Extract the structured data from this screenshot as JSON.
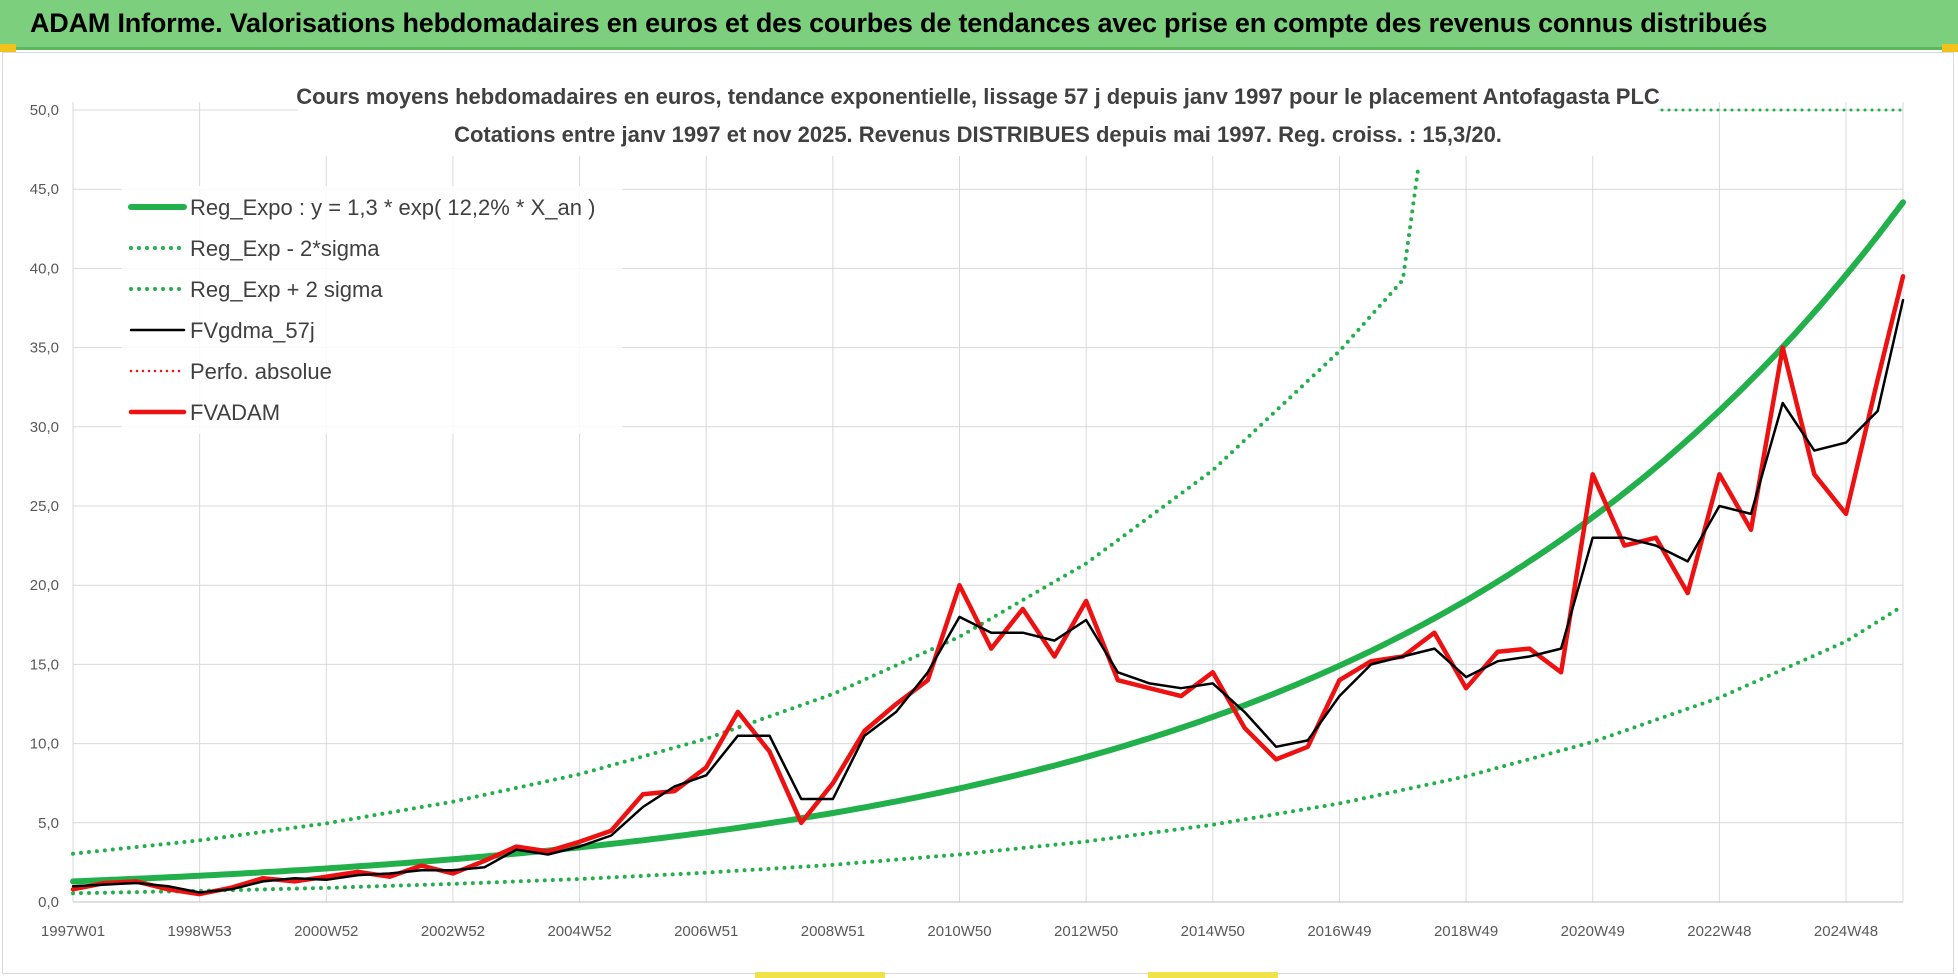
{
  "banner": {
    "title": "ADAM Informe. Valorisations hebdomadaires en euros et des courbes de tendances avec prise en compte des revenus connus distribués"
  },
  "colors": {
    "banner_bg": "#7ccf7c",
    "reg_green": "#22b04b",
    "fvadam_red": "#ee1111",
    "gdma_black": "#000000",
    "grid": "#d9d9d9",
    "text": "#404040"
  },
  "chart_data": {
    "type": "line",
    "title": "Cours moyens hebdomadaires en euros, tendance exponentielle, lissage 57 j depuis janv 1997  pour le placement Antofagasta PLC",
    "subtitle": "Cotations entre janv 1997 et nov 2025. Revenus DISTRIBUES depuis mai 1997.  Reg. croiss. : 15,3/20.",
    "xlabel": "",
    "ylabel": "",
    "ylim": [
      0,
      50
    ],
    "xlim": [
      1997.0,
      2025.9
    ],
    "grid": true,
    "legend_position": "top-left",
    "y_ticks": [
      "0,0",
      "5,0",
      "10,0",
      "15,0",
      "20,0",
      "25,0",
      "30,0",
      "35,0",
      "40,0",
      "45,0",
      "50,0"
    ],
    "x_ticks": [
      {
        "label": "1997W01",
        "year": 1997.0
      },
      {
        "label": "1998W53",
        "year": 1999.0
      },
      {
        "label": "2000W52",
        "year": 2001.0
      },
      {
        "label": "2002W52",
        "year": 2003.0
      },
      {
        "label": "2004W52",
        "year": 2005.0
      },
      {
        "label": "2006W51",
        "year": 2007.0
      },
      {
        "label": "2008W51",
        "year": 2009.0
      },
      {
        "label": "2010W50",
        "year": 2011.0
      },
      {
        "label": "2012W50",
        "year": 2013.0
      },
      {
        "label": "2014W50",
        "year": 2015.0
      },
      {
        "label": "2016W49",
        "year": 2017.0
      },
      {
        "label": "2018W49",
        "year": 2019.0
      },
      {
        "label": "2020W49",
        "year": 2021.0
      },
      {
        "label": "2022W48",
        "year": 2023.0
      },
      {
        "label": "2024W48",
        "year": 2025.0
      }
    ],
    "regression": {
      "a": 1.3,
      "rate": 0.122
    },
    "legend": [
      {
        "label": "Reg_Expo : y = 1,3 * exp( 12,2% *  X_an )",
        "style": "solid-green"
      },
      {
        "label": "Reg_Exp - 2*sigma",
        "style": "dotted-green"
      },
      {
        "label": "Reg_Exp + 2 sigma",
        "style": "dotted-green"
      },
      {
        "label": "FVgdma_57j",
        "style": "solid-black"
      },
      {
        "label": "Perfo. absolue",
        "style": "dotted-red"
      },
      {
        "label": "FVADAM",
        "style": "solid-red"
      }
    ],
    "series": [
      {
        "name": "Reg_Expo : y = 1,3 * exp( 12,2% *  X_an )",
        "x": [
          1997,
          1998,
          1999,
          2000,
          2001,
          2002,
          2003,
          2004,
          2005,
          2006,
          2007,
          2008,
          2009,
          2010,
          2011,
          2012,
          2013,
          2014,
          2015,
          2016,
          2017,
          2018,
          2019,
          2020,
          2021,
          2022,
          2023,
          2024,
          2025,
          2025.9
        ],
        "values": [
          1.3,
          1.47,
          1.66,
          1.88,
          2.12,
          2.39,
          2.7,
          3.05,
          3.45,
          3.89,
          4.4,
          4.97,
          5.61,
          6.34,
          7.16,
          8.09,
          9.13,
          10.31,
          11.65,
          13.16,
          14.86,
          16.78,
          18.95,
          21.4,
          24.17,
          27.3,
          30.83,
          34.82,
          39.33,
          44.7
        ]
      },
      {
        "name": "Reg_Exp - 2*sigma",
        "x": [
          1997,
          1999,
          2001,
          2003,
          2005,
          2007,
          2009,
          2011,
          2013,
          2015,
          2017,
          2019,
          2021,
          2023,
          2025,
          2025.9
        ],
        "values": [
          0.55,
          0.7,
          0.89,
          1.14,
          1.45,
          1.85,
          2.35,
          3.0,
          3.82,
          4.88,
          6.22,
          7.93,
          10.11,
          12.9,
          16.45,
          18.7
        ]
      },
      {
        "name": "Reg_Exp + 2 sigma",
        "x": [
          1997,
          1999,
          2001,
          2003,
          2005,
          2007,
          2009,
          2011,
          2013,
          2015,
          2017,
          2018,
          2018.25
        ],
        "values": [
          3.05,
          3.89,
          4.96,
          6.33,
          8.07,
          10.3,
          13.13,
          16.75,
          21.37,
          27.26,
          34.77,
          39.27,
          46.5
        ]
      },
      {
        "name": "FVgdma_57j",
        "x": [
          1997.0,
          1997.5,
          1998.0,
          1998.5,
          1999.0,
          1999.5,
          2000.0,
          2000.5,
          2001.0,
          2001.5,
          2002.0,
          2002.5,
          2003.0,
          2003.5,
          2004.0,
          2004.5,
          2005.0,
          2005.5,
          2006.0,
          2006.5,
          2007.0,
          2007.5,
          2008.0,
          2008.5,
          2009.0,
          2009.5,
          2010.0,
          2010.5,
          2011.0,
          2011.5,
          2012.0,
          2012.5,
          2013.0,
          2013.5,
          2014.0,
          2014.5,
          2015.0,
          2015.5,
          2016.0,
          2016.5,
          2017.0,
          2017.5,
          2018.0,
          2018.5,
          2019.0,
          2019.5,
          2020.0,
          2020.5,
          2021.0,
          2021.5,
          2022.0,
          2022.5,
          2023.0,
          2023.5,
          2024.0,
          2024.5,
          2025.0,
          2025.5,
          2025.9
        ],
        "values": [
          1.0,
          1.1,
          1.2,
          1.0,
          0.6,
          0.8,
          1.3,
          1.5,
          1.4,
          1.7,
          1.8,
          2.0,
          2.0,
          2.2,
          3.3,
          3.0,
          3.5,
          4.2,
          6.0,
          7.3,
          8.0,
          10.5,
          10.5,
          6.5,
          6.5,
          10.5,
          12.0,
          14.5,
          18.0,
          17.0,
          17.0,
          16.5,
          17.8,
          14.5,
          13.8,
          13.5,
          13.8,
          12.0,
          9.8,
          10.2,
          13.0,
          15.0,
          15.5,
          16.0,
          14.2,
          15.2,
          15.5,
          16.0,
          23.0,
          23.0,
          22.5,
          21.5,
          25.0,
          24.5,
          31.5,
          28.5,
          29.0,
          31.0,
          38.0
        ]
      },
      {
        "name": "Perfo. absolue",
        "x": [
          1997.0,
          1997.5,
          1998.0,
          1998.5,
          1999.0,
          1999.5,
          2000.0,
          2000.5,
          2001.0,
          2001.5,
          2002.0,
          2002.5,
          2003.0,
          2003.5,
          2004.0,
          2004.5,
          2005.0,
          2005.5,
          2006.0,
          2006.5,
          2007.0,
          2007.5,
          2008.0,
          2008.5,
          2009.0,
          2009.5,
          2010.0,
          2010.5,
          2011.0,
          2011.5,
          2012.0,
          2012.5,
          2013.0,
          2013.5,
          2014.0,
          2014.5,
          2015.0,
          2015.5,
          2016.0,
          2016.5,
          2017.0,
          2017.5,
          2018.0,
          2018.5,
          2019.0,
          2019.5,
          2020.0,
          2020.5,
          2021.0,
          2021.5,
          2022.0,
          2022.5,
          2023.0,
          2023.5,
          2024.0,
          2024.5,
          2025.0,
          2025.5,
          2025.9
        ],
        "values": [
          0.8,
          1.2,
          1.3,
          0.8,
          0.5,
          0.9,
          1.5,
          1.3,
          1.6,
          1.9,
          1.6,
          2.3,
          1.8,
          2.6,
          3.5,
          3.2,
          3.8,
          4.5,
          6.8,
          7.0,
          8.5,
          12.0,
          9.5,
          5.0,
          7.5,
          10.8,
          12.5,
          14.0,
          20.0,
          16.0,
          18.5,
          15.5,
          19.0,
          14.0,
          13.5,
          13.0,
          14.5,
          11.0,
          9.0,
          9.8,
          14.0,
          15.2,
          15.5,
          17.0,
          13.5,
          15.8,
          16.0,
          14.5,
          27.0,
          22.5,
          23.0,
          19.5,
          27.0,
          23.5,
          35.0,
          27.0,
          24.5,
          33.0,
          39.5
        ]
      },
      {
        "name": "FVADAM",
        "x": [
          1997.0,
          1997.5,
          1998.0,
          1998.5,
          1999.0,
          1999.5,
          2000.0,
          2000.5,
          2001.0,
          2001.5,
          2002.0,
          2002.5,
          2003.0,
          2003.5,
          2004.0,
          2004.5,
          2005.0,
          2005.5,
          2006.0,
          2006.5,
          2007.0,
          2007.5,
          2008.0,
          2008.5,
          2009.0,
          2009.5,
          2010.0,
          2010.5,
          2011.0,
          2011.5,
          2012.0,
          2012.5,
          2013.0,
          2013.5,
          2014.0,
          2014.5,
          2015.0,
          2015.5,
          2016.0,
          2016.5,
          2017.0,
          2017.5,
          2018.0,
          2018.5,
          2019.0,
          2019.5,
          2020.0,
          2020.5,
          2021.0,
          2021.5,
          2022.0,
          2022.5,
          2023.0,
          2023.5,
          2024.0,
          2024.5,
          2025.0,
          2025.5,
          2025.9
        ],
        "values": [
          0.8,
          1.2,
          1.3,
          0.8,
          0.5,
          0.9,
          1.5,
          1.3,
          1.6,
          1.9,
          1.6,
          2.3,
          1.8,
          2.6,
          3.5,
          3.2,
          3.8,
          4.5,
          6.8,
          7.0,
          8.5,
          12.0,
          9.5,
          5.0,
          7.5,
          10.8,
          12.5,
          14.0,
          20.0,
          16.0,
          18.5,
          15.5,
          19.0,
          14.0,
          13.5,
          13.0,
          14.5,
          11.0,
          9.0,
          9.8,
          14.0,
          15.2,
          15.5,
          17.0,
          13.5,
          15.8,
          16.0,
          14.5,
          27.0,
          22.5,
          23.0,
          19.5,
          27.0,
          23.5,
          35.0,
          27.0,
          24.5,
          33.0,
          39.5
        ]
      }
    ]
  }
}
